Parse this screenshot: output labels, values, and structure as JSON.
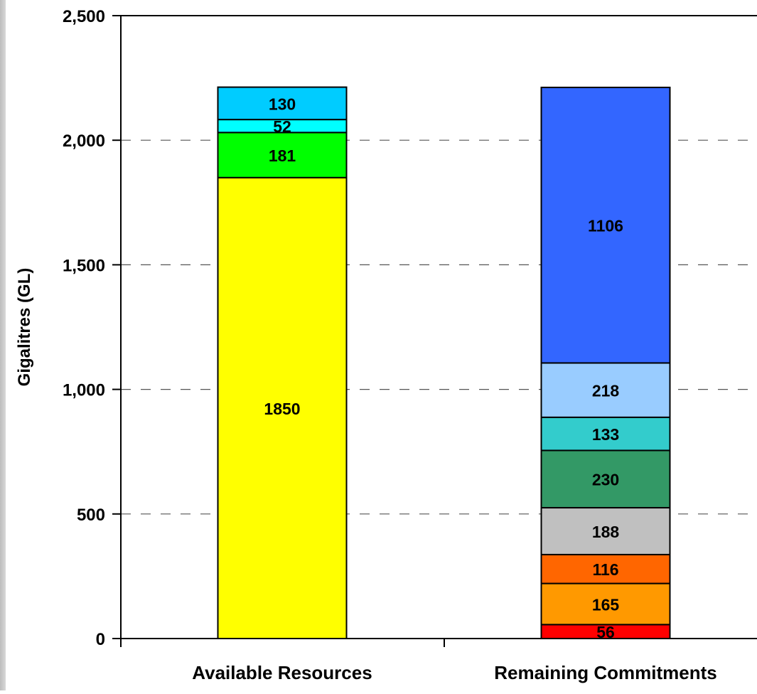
{
  "chart_data": {
    "type": "bar",
    "stacked": true,
    "categories": [
      "Available Resources",
      "Remaining Commitments"
    ],
    "ylabel": "Gigalitres (GL)",
    "xlabel": "",
    "ylim": [
      0,
      2500
    ],
    "yticks": [
      0,
      500,
      1000,
      1500,
      2000,
      2500
    ],
    "ytick_labels": [
      "0",
      "500",
      "1,000",
      "1,500",
      "2,000",
      "2,500"
    ],
    "grid": "horizontal dashed",
    "stacks": [
      {
        "category": "Available Resources",
        "segments": [
          {
            "value": 1850,
            "label": "1850",
            "color": "#ffff00"
          },
          {
            "value": 181,
            "label": "181",
            "color": "#00ff00"
          },
          {
            "value": 52,
            "label": "52",
            "color": "#00ffff"
          },
          {
            "value": 130,
            "label": "130",
            "color": "#00ccff"
          }
        ]
      },
      {
        "category": "Remaining Commitments",
        "segments": [
          {
            "value": 56,
            "label": "56",
            "color": "#ff0000"
          },
          {
            "value": 165,
            "label": "165",
            "color": "#ff9900"
          },
          {
            "value": 116,
            "label": "116",
            "color": "#ff6600"
          },
          {
            "value": 188,
            "label": "188",
            "color": "#c0c0c0"
          },
          {
            "value": 230,
            "label": "230",
            "color": "#339966"
          },
          {
            "value": 133,
            "label": "133",
            "color": "#33cccc"
          },
          {
            "value": 218,
            "label": "218",
            "color": "#99ccff"
          },
          {
            "value": 1106,
            "label": "1106",
            "color": "#3366ff"
          }
        ]
      }
    ]
  }
}
